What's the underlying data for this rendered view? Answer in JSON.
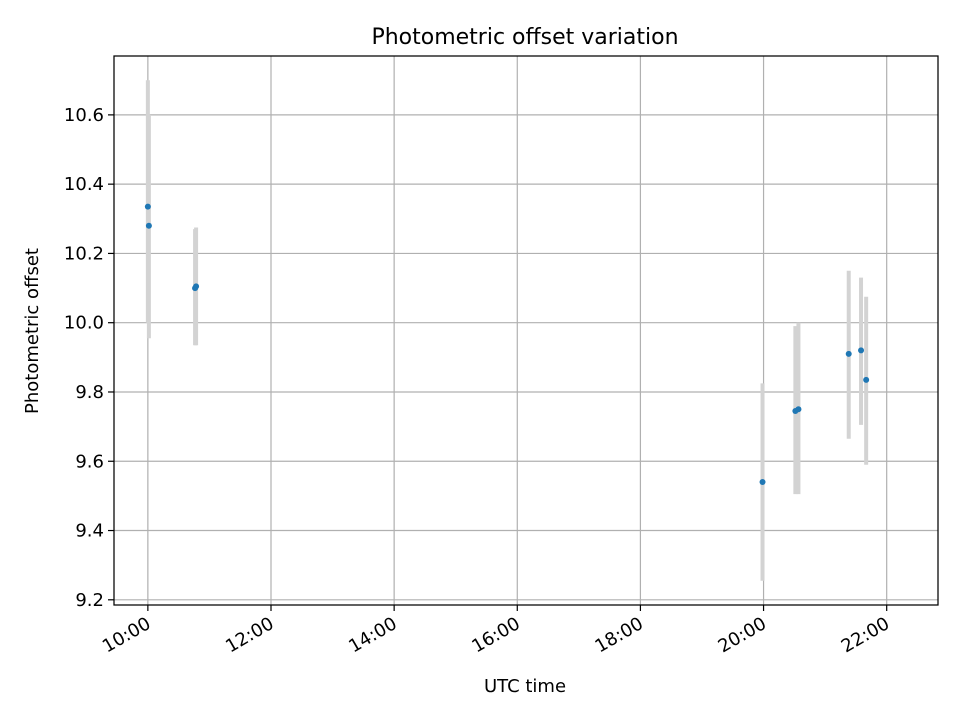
{
  "chart_data": {
    "type": "scatter",
    "title": "Photometric offset variation",
    "xlabel": "UTC time",
    "ylabel": "Photometric offset",
    "x_ticks": [
      "10:00",
      "12:00",
      "14:00",
      "16:00",
      "18:00",
      "20:00",
      "22:00"
    ],
    "y_ticks": [
      "9.2",
      "9.4",
      "9.6",
      "9.8",
      "10.0",
      "10.2",
      "10.4",
      "10.6"
    ],
    "xlim": [
      "09:27",
      "22:50"
    ],
    "ylim": [
      9.185,
      10.77
    ],
    "grid": true,
    "legend": false,
    "colors": {
      "points": "#1f77b4",
      "error_bars": "#d3d3d3",
      "grid": "#b0b0b0",
      "axes": "#000000"
    },
    "series": [
      {
        "x": [
          "10:00",
          "10:01",
          "10:46",
          "10:47",
          "19:59",
          "20:31",
          "20:34",
          "21:23",
          "21:35",
          "21:40"
        ],
        "y": [
          10.335,
          10.28,
          10.1,
          10.105,
          9.54,
          9.745,
          9.75,
          9.91,
          9.92,
          9.835
        ],
        "y_low": [
          10.0,
          9.955,
          9.935,
          9.935,
          9.255,
          9.505,
          9.505,
          9.665,
          9.705,
          9.59
        ],
        "y_high": [
          10.7,
          10.6,
          10.27,
          10.275,
          9.825,
          9.99,
          10.0,
          10.15,
          10.13,
          10.075
        ]
      }
    ]
  }
}
